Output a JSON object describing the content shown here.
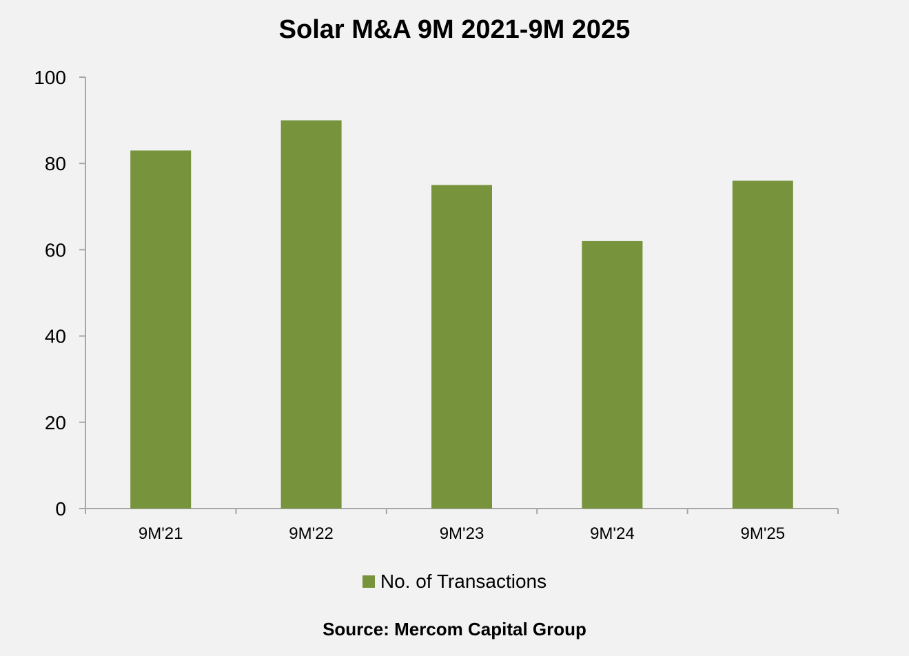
{
  "chart_data": {
    "type": "bar",
    "title": "Solar M&A 9M 2021-9M 2025",
    "categories": [
      "9M'21",
      "9M'22",
      "9M'23",
      "9M'24",
      "9M'25"
    ],
    "series": [
      {
        "name": "No. of Transactions",
        "values": [
          83,
          90,
          75,
          62,
          76
        ],
        "color": "#77933c"
      }
    ],
    "xlabel": "",
    "ylabel": "",
    "ylim": [
      0,
      100
    ],
    "yticks": [
      0,
      20,
      40,
      60,
      80,
      100
    ],
    "grid": false,
    "legend_position": "bottom",
    "source": "Source: Mercom Capital Group"
  },
  "colors": {
    "background": "#f2f2f2",
    "axis": "#a6a6a6"
  }
}
